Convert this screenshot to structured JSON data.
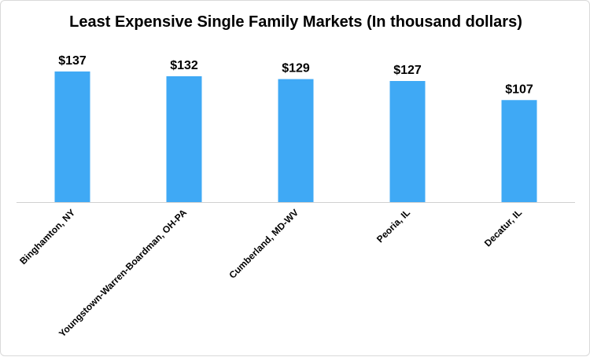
{
  "chart_data": {
    "type": "bar",
    "title": "Least Expensive Single Family Markets (In thousand dollars)",
    "categories": [
      "Binghamton, NY",
      "Youngstown-Warren-Boardman, OH-PA",
      "Cumberland, MD-WV",
      "Peoria, IL",
      "Decatur, IL"
    ],
    "values": [
      137,
      132,
      129,
      127,
      107
    ],
    "data_labels": [
      "$137",
      "$132",
      "$129",
      "$127",
      "$107"
    ],
    "xlabel": "",
    "ylabel": "",
    "ylim": [
      0,
      160
    ],
    "grid": false,
    "legend": "none",
    "bar_color": "#3fa9f5"
  }
}
